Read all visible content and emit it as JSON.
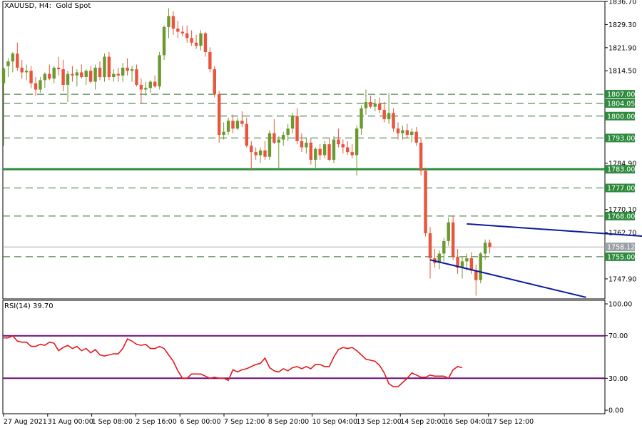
{
  "header": {
    "symbol": "XAUUSD, H4:",
    "description": "Gold Spot"
  },
  "rsi": {
    "label": "RSI(14) 39.70"
  },
  "colors": {
    "bull": "#6a9a2f",
    "bear": "#e8543c",
    "level_bg": "#2e8b3e",
    "current_bg": "#9aa0a6",
    "current_last_bg": "#1a1a1a",
    "support_line": "#2e8b3e",
    "channel": "#0b1aa0",
    "rsi_line": "#e31a1c",
    "rsi_levels": "#6b0f7a",
    "dash": "#2f6f2f"
  },
  "chart_data": [
    {
      "type": "candlestick",
      "title": "XAUUSD, H4: Gold Spot",
      "ylim": [
        1741.5,
        1836.7
      ],
      "price_ticks": [
        "1836.70",
        "1829.30",
        "1821.90",
        "1814.50",
        "1784.90",
        "1770.10",
        "1762.70",
        "1747.90"
      ],
      "time_labels": [
        "27 Aug 2021",
        "31 Aug 00:00",
        "1 Sep 08:00",
        "2 Sep 16:00",
        "6 Sep 00:00",
        "7 Sep 12:00",
        "8 Sep 20:00",
        "10 Sep 04:00",
        "13 Sep 12:00",
        "14 Sep 20:00",
        "16 Sep 04:00",
        "17 Sep 12:00"
      ],
      "levels": [
        {
          "label": "1807.00",
          "value": 1807.0,
          "style": "dashed"
        },
        {
          "label": "1804.05",
          "value": 1804.05,
          "style": "dashed"
        },
        {
          "label": "1800.00",
          "value": 1800.0,
          "style": "dashed"
        },
        {
          "label": "1793.00",
          "value": 1793.0,
          "style": "dashed"
        },
        {
          "label": "1783.00",
          "value": 1783.0,
          "style": "solid"
        },
        {
          "label": "1777.00",
          "value": 1777.0,
          "style": "dashed"
        },
        {
          "label": "1768.00",
          "value": 1768.0,
          "style": "dashed"
        },
        {
          "label": "1755.00",
          "value": 1755.0,
          "style": "dashed"
        }
      ],
      "current_price": {
        "label": "1758.12",
        "value": 1758.12
      },
      "channel": [
        {
          "from": {
            "bar": 101,
            "price": 1765.5
          },
          "to": {
            "bar": 140,
            "price": 1761.5
          }
        },
        {
          "from": {
            "bar": 93,
            "price": 1754.0
          },
          "to": {
            "bar": 127,
            "price": 1742.0
          }
        }
      ],
      "candles": [
        {
          "o": 1810.5,
          "h": 1815.5,
          "l": 1790.5,
          "c": 1815.2
        },
        {
          "o": 1816.0,
          "h": 1818.5,
          "l": 1812.5,
          "c": 1817.5
        },
        {
          "o": 1817.5,
          "h": 1820.5,
          "l": 1814.0,
          "c": 1820.0
        },
        {
          "o": 1820.0,
          "h": 1823.5,
          "l": 1814.5,
          "c": 1815.5
        },
        {
          "o": 1815.5,
          "h": 1818.0,
          "l": 1812.0,
          "c": 1814.0
        },
        {
          "o": 1814.0,
          "h": 1816.5,
          "l": 1811.5,
          "c": 1814.5
        },
        {
          "o": 1814.5,
          "h": 1816.0,
          "l": 1809.0,
          "c": 1810.5
        },
        {
          "o": 1810.5,
          "h": 1812.5,
          "l": 1806.5,
          "c": 1808.5
        },
        {
          "o": 1808.5,
          "h": 1812.5,
          "l": 1807.5,
          "c": 1811.5
        },
        {
          "o": 1811.5,
          "h": 1814.0,
          "l": 1809.0,
          "c": 1813.5
        },
        {
          "o": 1813.5,
          "h": 1816.5,
          "l": 1811.5,
          "c": 1812.0
        },
        {
          "o": 1812.0,
          "h": 1816.0,
          "l": 1810.5,
          "c": 1815.5
        },
        {
          "o": 1815.5,
          "h": 1819.0,
          "l": 1813.0,
          "c": 1815.0
        },
        {
          "o": 1815.0,
          "h": 1818.0,
          "l": 1808.0,
          "c": 1810.0
        },
        {
          "o": 1810.0,
          "h": 1814.5,
          "l": 1804.5,
          "c": 1813.5
        },
        {
          "o": 1813.5,
          "h": 1816.0,
          "l": 1811.0,
          "c": 1813.0
        },
        {
          "o": 1813.0,
          "h": 1815.0,
          "l": 1809.5,
          "c": 1814.0
        },
        {
          "o": 1814.0,
          "h": 1816.5,
          "l": 1812.0,
          "c": 1812.5
        },
        {
          "o": 1812.5,
          "h": 1815.0,
          "l": 1810.0,
          "c": 1814.5
        },
        {
          "o": 1814.5,
          "h": 1816.0,
          "l": 1810.5,
          "c": 1811.0
        },
        {
          "o": 1811.0,
          "h": 1816.5,
          "l": 1808.5,
          "c": 1815.5
        },
        {
          "o": 1815.5,
          "h": 1817.5,
          "l": 1811.5,
          "c": 1812.5
        },
        {
          "o": 1812.5,
          "h": 1820.0,
          "l": 1811.0,
          "c": 1819.0
        },
        {
          "o": 1819.0,
          "h": 1820.5,
          "l": 1811.5,
          "c": 1812.5
        },
        {
          "o": 1812.5,
          "h": 1815.0,
          "l": 1811.0,
          "c": 1813.5
        },
        {
          "o": 1813.5,
          "h": 1815.5,
          "l": 1811.0,
          "c": 1813.0
        },
        {
          "o": 1813.0,
          "h": 1817.0,
          "l": 1811.0,
          "c": 1815.5
        },
        {
          "o": 1815.5,
          "h": 1818.5,
          "l": 1813.0,
          "c": 1814.5
        },
        {
          "o": 1814.5,
          "h": 1816.0,
          "l": 1811.0,
          "c": 1815.0
        },
        {
          "o": 1815.0,
          "h": 1816.5,
          "l": 1809.5,
          "c": 1810.0
        },
        {
          "o": 1810.0,
          "h": 1812.0,
          "l": 1804.0,
          "c": 1808.5
        },
        {
          "o": 1808.5,
          "h": 1811.0,
          "l": 1806.5,
          "c": 1809.0
        },
        {
          "o": 1809.0,
          "h": 1811.5,
          "l": 1807.5,
          "c": 1811.0
        },
        {
          "o": 1811.0,
          "h": 1813.0,
          "l": 1809.0,
          "c": 1809.5
        },
        {
          "o": 1809.5,
          "h": 1820.5,
          "l": 1808.5,
          "c": 1819.5
        },
        {
          "o": 1819.5,
          "h": 1829.0,
          "l": 1818.0,
          "c": 1828.5
        },
        {
          "o": 1828.5,
          "h": 1834.5,
          "l": 1825.0,
          "c": 1832.0
        },
        {
          "o": 1832.0,
          "h": 1833.5,
          "l": 1826.0,
          "c": 1828.0
        },
        {
          "o": 1828.0,
          "h": 1830.5,
          "l": 1825.0,
          "c": 1827.0
        },
        {
          "o": 1827.0,
          "h": 1829.0,
          "l": 1825.5,
          "c": 1826.5
        },
        {
          "o": 1826.5,
          "h": 1829.0,
          "l": 1823.5,
          "c": 1825.0
        },
        {
          "o": 1825.0,
          "h": 1827.5,
          "l": 1822.5,
          "c": 1823.5
        },
        {
          "o": 1823.5,
          "h": 1826.0,
          "l": 1821.5,
          "c": 1822.5
        },
        {
          "o": 1822.5,
          "h": 1827.5,
          "l": 1821.0,
          "c": 1826.5
        },
        {
          "o": 1826.5,
          "h": 1827.0,
          "l": 1819.0,
          "c": 1820.5
        },
        {
          "o": 1820.5,
          "h": 1822.0,
          "l": 1814.0,
          "c": 1815.0
        },
        {
          "o": 1815.0,
          "h": 1816.0,
          "l": 1806.0,
          "c": 1807.0
        },
        {
          "o": 1807.0,
          "h": 1808.0,
          "l": 1791.5,
          "c": 1794.0
        },
        {
          "o": 1794.0,
          "h": 1798.0,
          "l": 1792.5,
          "c": 1795.0
        },
        {
          "o": 1795.0,
          "h": 1799.5,
          "l": 1794.0,
          "c": 1798.5
        },
        {
          "o": 1798.5,
          "h": 1800.5,
          "l": 1794.5,
          "c": 1796.0
        },
        {
          "o": 1796.0,
          "h": 1799.5,
          "l": 1795.5,
          "c": 1798.5
        },
        {
          "o": 1798.5,
          "h": 1801.5,
          "l": 1796.5,
          "c": 1797.5
        },
        {
          "o": 1797.5,
          "h": 1799.5,
          "l": 1790.0,
          "c": 1790.5
        },
        {
          "o": 1790.5,
          "h": 1792.0,
          "l": 1782.5,
          "c": 1788.5
        },
        {
          "o": 1788.5,
          "h": 1790.0,
          "l": 1786.0,
          "c": 1787.5
        },
        {
          "o": 1787.5,
          "h": 1790.0,
          "l": 1785.0,
          "c": 1789.0
        },
        {
          "o": 1789.0,
          "h": 1792.0,
          "l": 1786.0,
          "c": 1787.0
        },
        {
          "o": 1787.0,
          "h": 1795.5,
          "l": 1786.0,
          "c": 1794.5
        },
        {
          "o": 1794.5,
          "h": 1799.0,
          "l": 1791.0,
          "c": 1791.5
        },
        {
          "o": 1791.5,
          "h": 1793.5,
          "l": 1783.0,
          "c": 1792.5
        },
        {
          "o": 1792.5,
          "h": 1795.0,
          "l": 1790.5,
          "c": 1794.0
        },
        {
          "o": 1794.0,
          "h": 1797.5,
          "l": 1792.0,
          "c": 1796.0
        },
        {
          "o": 1796.0,
          "h": 1801.0,
          "l": 1794.5,
          "c": 1800.0
        },
        {
          "o": 1800.0,
          "h": 1802.5,
          "l": 1791.0,
          "c": 1792.0
        },
        {
          "o": 1792.0,
          "h": 1794.5,
          "l": 1788.5,
          "c": 1790.0
        },
        {
          "o": 1790.0,
          "h": 1793.0,
          "l": 1788.0,
          "c": 1791.5
        },
        {
          "o": 1791.5,
          "h": 1793.0,
          "l": 1784.5,
          "c": 1786.0
        },
        {
          "o": 1786.0,
          "h": 1790.0,
          "l": 1783.5,
          "c": 1789.5
        },
        {
          "o": 1789.5,
          "h": 1791.0,
          "l": 1786.0,
          "c": 1787.5
        },
        {
          "o": 1787.5,
          "h": 1792.0,
          "l": 1786.5,
          "c": 1791.0
        },
        {
          "o": 1791.0,
          "h": 1793.0,
          "l": 1785.5,
          "c": 1786.0
        },
        {
          "o": 1786.0,
          "h": 1793.5,
          "l": 1785.0,
          "c": 1792.5
        },
        {
          "o": 1792.5,
          "h": 1796.0,
          "l": 1790.0,
          "c": 1791.0
        },
        {
          "o": 1791.0,
          "h": 1792.5,
          "l": 1788.0,
          "c": 1790.0
        },
        {
          "o": 1790.0,
          "h": 1792.0,
          "l": 1787.5,
          "c": 1788.5
        },
        {
          "o": 1788.5,
          "h": 1791.0,
          "l": 1786.5,
          "c": 1787.5
        },
        {
          "o": 1787.5,
          "h": 1797.0,
          "l": 1781.0,
          "c": 1796.0
        },
        {
          "o": 1796.0,
          "h": 1803.5,
          "l": 1794.0,
          "c": 1802.5
        },
        {
          "o": 1802.5,
          "h": 1808.5,
          "l": 1800.5,
          "c": 1804.5
        },
        {
          "o": 1804.5,
          "h": 1806.5,
          "l": 1802.5,
          "c": 1803.0
        },
        {
          "o": 1803.0,
          "h": 1805.5,
          "l": 1801.5,
          "c": 1804.0
        },
        {
          "o": 1804.0,
          "h": 1806.0,
          "l": 1801.0,
          "c": 1802.0
        },
        {
          "o": 1802.0,
          "h": 1804.5,
          "l": 1798.0,
          "c": 1799.0
        },
        {
          "o": 1799.0,
          "h": 1807.5,
          "l": 1797.5,
          "c": 1801.0
        },
        {
          "o": 1801.0,
          "h": 1802.5,
          "l": 1795.0,
          "c": 1796.0
        },
        {
          "o": 1796.0,
          "h": 1798.0,
          "l": 1792.5,
          "c": 1794.5
        },
        {
          "o": 1794.5,
          "h": 1797.0,
          "l": 1792.5,
          "c": 1795.5
        },
        {
          "o": 1795.5,
          "h": 1797.5,
          "l": 1793.0,
          "c": 1794.0
        },
        {
          "o": 1794.0,
          "h": 1796.0,
          "l": 1791.5,
          "c": 1795.0
        },
        {
          "o": 1795.0,
          "h": 1796.5,
          "l": 1790.5,
          "c": 1791.5
        },
        {
          "o": 1791.5,
          "h": 1793.0,
          "l": 1781.0,
          "c": 1782.5
        },
        {
          "o": 1782.5,
          "h": 1783.5,
          "l": 1761.5,
          "c": 1762.5
        },
        {
          "o": 1762.5,
          "h": 1764.5,
          "l": 1748.0,
          "c": 1754.5
        },
        {
          "o": 1754.5,
          "h": 1757.5,
          "l": 1751.5,
          "c": 1753.0
        },
        {
          "o": 1753.0,
          "h": 1757.0,
          "l": 1751.0,
          "c": 1756.0
        },
        {
          "o": 1756.0,
          "h": 1761.0,
          "l": 1753.5,
          "c": 1760.0
        },
        {
          "o": 1760.0,
          "h": 1767.5,
          "l": 1758.5,
          "c": 1766.0
        },
        {
          "o": 1766.0,
          "h": 1768.0,
          "l": 1754.0,
          "c": 1755.0
        },
        {
          "o": 1755.0,
          "h": 1757.5,
          "l": 1749.5,
          "c": 1751.5
        },
        {
          "o": 1751.5,
          "h": 1755.0,
          "l": 1748.0,
          "c": 1753.5
        },
        {
          "o": 1753.5,
          "h": 1756.0,
          "l": 1750.5,
          "c": 1754.5
        },
        {
          "o": 1754.5,
          "h": 1756.5,
          "l": 1749.5,
          "c": 1750.5
        },
        {
          "o": 1750.5,
          "h": 1752.5,
          "l": 1742.5,
          "c": 1747.5
        },
        {
          "o": 1747.5,
          "h": 1756.5,
          "l": 1746.5,
          "c": 1756.0
        },
        {
          "o": 1756.0,
          "h": 1760.5,
          "l": 1754.0,
          "c": 1759.5
        },
        {
          "o": 1759.5,
          "h": 1760.5,
          "l": 1756.0,
          "c": 1758.12
        }
      ]
    },
    {
      "type": "line",
      "title": "RSI(14) 39.70",
      "ylim": [
        0,
        100
      ],
      "ticks": [
        "100.00",
        "70.00",
        "30.00",
        "0.00"
      ],
      "levels": [
        70,
        30
      ],
      "series": [
        {
          "values": [
            68,
            68,
            70,
            65,
            64,
            64,
            60,
            60,
            62,
            61,
            64,
            63,
            56,
            59,
            61,
            58,
            60,
            56,
            58,
            54,
            57,
            52,
            51,
            52,
            53,
            53,
            58,
            67,
            65,
            62,
            61,
            62,
            58,
            58,
            60,
            58,
            52,
            46,
            37,
            30,
            30,
            34,
            34,
            34,
            32,
            30,
            31,
            30,
            30,
            28,
            38,
            36,
            38,
            39,
            41,
            43,
            44,
            49,
            40,
            37,
            36,
            39,
            37,
            40,
            41,
            39,
            41,
            39,
            43,
            43,
            41,
            41,
            50,
            57,
            59,
            58,
            59,
            56,
            52,
            48,
            47,
            46,
            42,
            35,
            25,
            22,
            22,
            26,
            30,
            35,
            33,
            31,
            31,
            33,
            32,
            32,
            32,
            30,
            38,
            41,
            40
          ]
        }
      ]
    }
  ]
}
